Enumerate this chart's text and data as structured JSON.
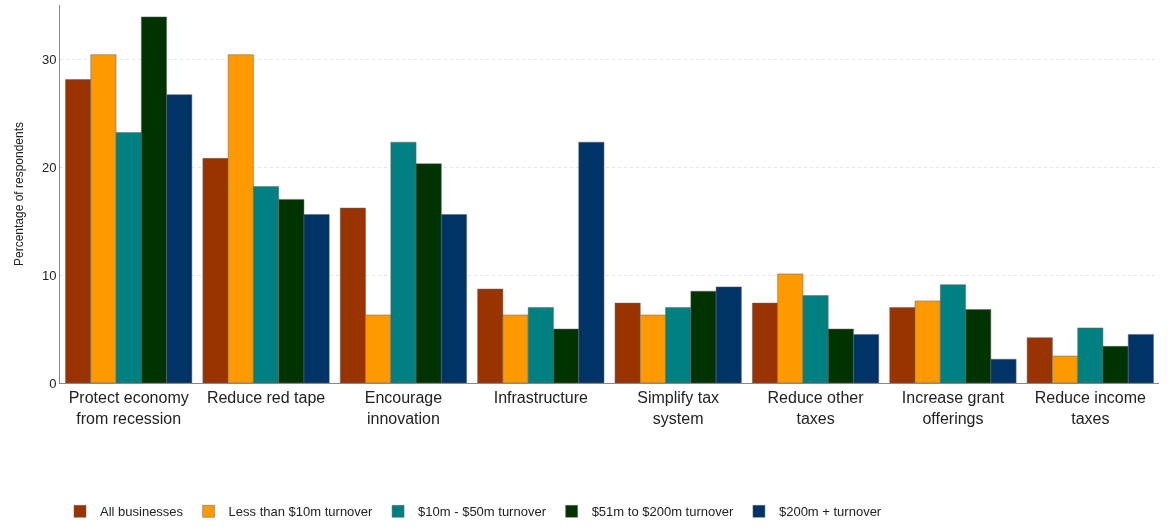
{
  "chart_data": {
    "type": "bar",
    "ylabel": "Percentage of respondents",
    "categories": [
      "Protect economy from recession",
      "Reduce red tape",
      "Encourage innovation",
      "Infrastructure",
      "Simplify tax system",
      "Reduce other taxes",
      "Increase grant offerings",
      "Reduce income taxes"
    ],
    "series": [
      {
        "name": "All businesses",
        "color": "#993300",
        "values": [
          28.1,
          20.8,
          16.2,
          8.7,
          7.4,
          7.4,
          7.0,
          4.2
        ]
      },
      {
        "name": "Less than $10m turnover",
        "color": "#ff9900",
        "values": [
          30.4,
          30.4,
          6.3,
          6.3,
          6.3,
          10.1,
          7.6,
          2.5
        ]
      },
      {
        "name": "$10m - $50m turnover",
        "color": "#008080",
        "values": [
          23.2,
          18.2,
          22.3,
          7.0,
          7.0,
          8.1,
          9.1,
          5.1
        ]
      },
      {
        "name": "$51m to $200m turnover",
        "color": "#003300",
        "values": [
          33.9,
          17.0,
          20.3,
          5.0,
          8.5,
          5.0,
          6.8,
          3.4
        ]
      },
      {
        "name": "$200m + turnover",
        "color": "#003366",
        "values": [
          26.7,
          15.6,
          15.6,
          22.3,
          8.9,
          4.5,
          2.2,
          4.5
        ]
      }
    ],
    "ylim": [
      0,
      35
    ],
    "yticks": [
      0,
      10,
      20,
      30
    ],
    "grid": "y",
    "legend": "bottom"
  }
}
